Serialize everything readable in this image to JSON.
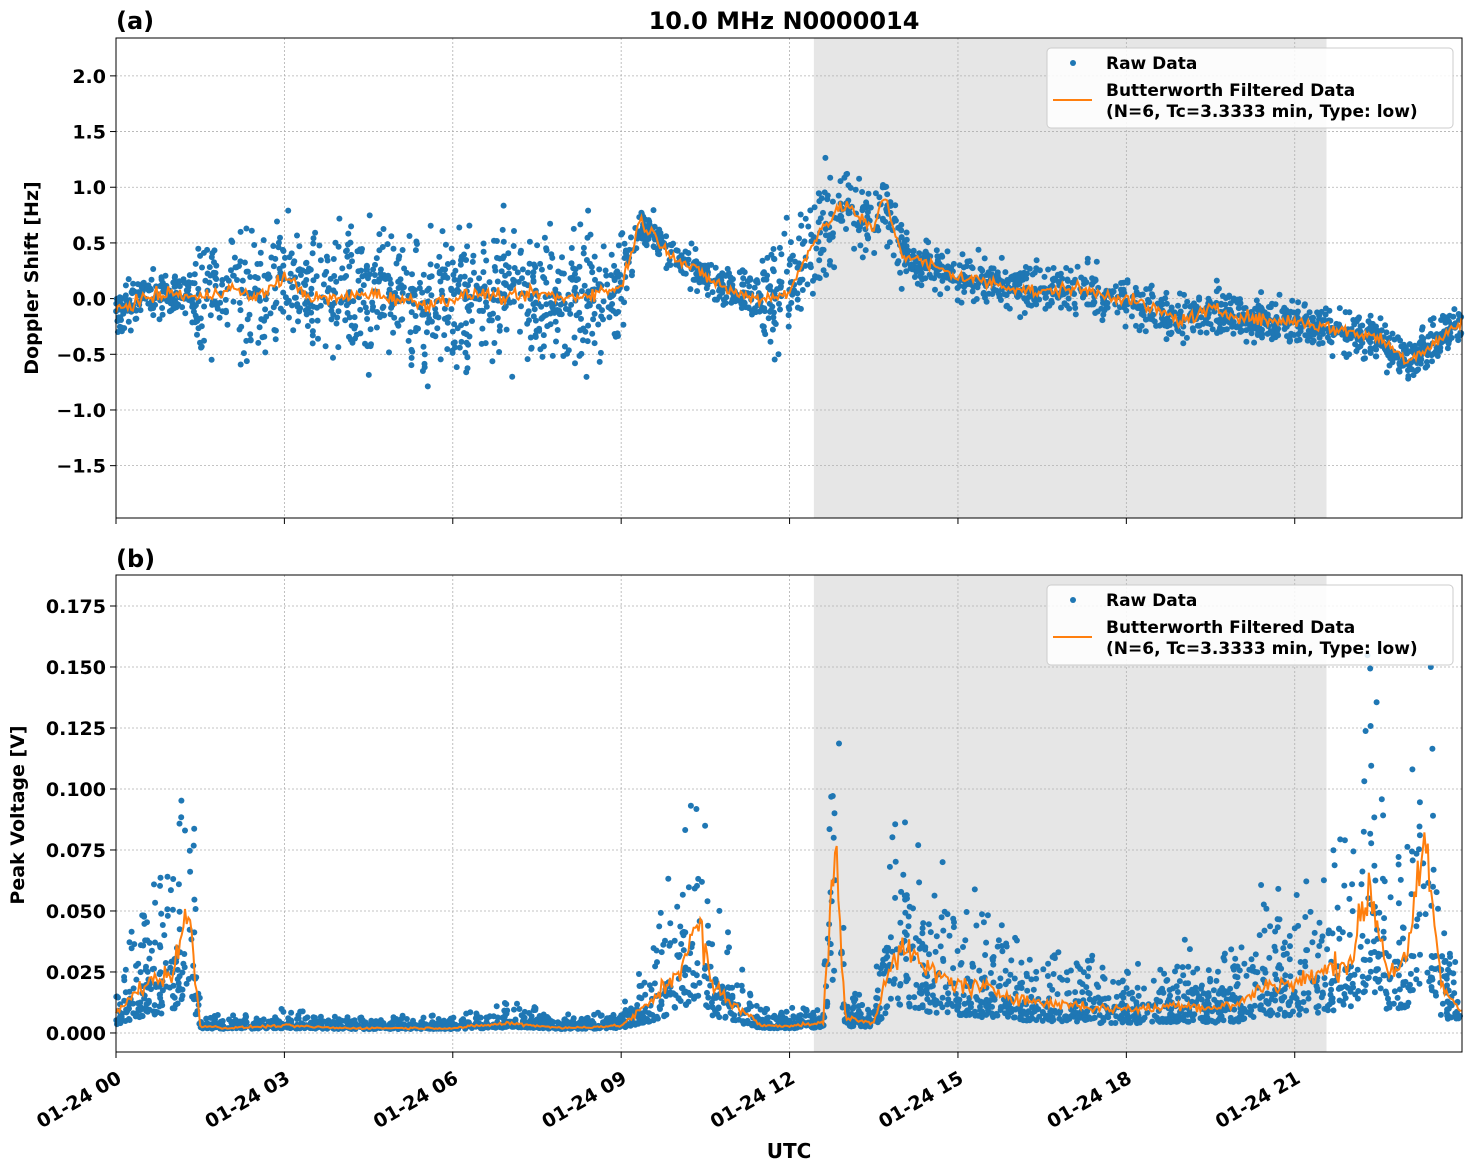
{
  "chart_data": [
    {
      "type": "scatter+line",
      "panel_label": "(a)",
      "title": "10.0 MHz N0000014",
      "xlabel": "",
      "ylabel": "Doppler Shift [Hz]",
      "ylim": [
        -1.97,
        2.34
      ],
      "yticks": [
        -1.5,
        -1.0,
        -0.5,
        0.0,
        0.5,
        1.0,
        1.5,
        2.0
      ],
      "ytick_labels": [
        "−1.5",
        "−1.0",
        "−0.5",
        "0.0",
        "0.5",
        "1.0",
        "1.5",
        "2.0"
      ],
      "xlim": [
        "01-24 00:00",
        "01-24 23:59"
      ],
      "grid": true,
      "legend_position": "top-right",
      "shaded_interval": [
        "12:26",
        "21:34"
      ],
      "series": [
        {
          "name": "Raw Data",
          "kind": "scatter",
          "color": "#1f77b4",
          "envelope_half_width": [
            [
              "00:00",
              "01:24",
              0.25
            ],
            [
              "01:24",
              "09:12",
              0.7
            ],
            [
              "09:12",
              "11:30",
              0.22
            ],
            [
              "11:30",
              "12:48",
              0.6
            ],
            [
              "12:48",
              "14:00",
              0.4
            ],
            [
              "14:00",
              "24:00",
              0.25
            ]
          ]
        },
        {
          "name": "Butterworth Filtered Data\n(N=6, Tc=3.3333 min, Type: low)",
          "kind": "line",
          "color": "#ff7f0e",
          "points": [
            [
              "00:00",
              -0.1
            ],
            [
              "00:30",
              0.0
            ],
            [
              "01:00",
              0.05
            ],
            [
              "01:30",
              0.0
            ],
            [
              "02:00",
              0.1
            ],
            [
              "02:30",
              0.0
            ],
            [
              "03:00",
              0.2
            ],
            [
              "03:30",
              0.0
            ],
            [
              "04:00",
              0.0
            ],
            [
              "04:30",
              0.05
            ],
            [
              "05:00",
              0.0
            ],
            [
              "05:30",
              -0.05
            ],
            [
              "06:00",
              0.0
            ],
            [
              "06:30",
              0.05
            ],
            [
              "07:00",
              0.0
            ],
            [
              "07:30",
              0.05
            ],
            [
              "08:00",
              0.0
            ],
            [
              "08:30",
              0.05
            ],
            [
              "09:00",
              0.1
            ],
            [
              "09:20",
              0.7
            ],
            [
              "10:00",
              0.35
            ],
            [
              "10:30",
              0.2
            ],
            [
              "11:00",
              0.05
            ],
            [
              "11:30",
              0.0
            ],
            [
              "12:00",
              0.05
            ],
            [
              "12:30",
              0.6
            ],
            [
              "13:00",
              0.85
            ],
            [
              "13:30",
              0.6
            ],
            [
              "13:40",
              0.95
            ],
            [
              "14:00",
              0.4
            ],
            [
              "14:30",
              0.3
            ],
            [
              "15:00",
              0.2
            ],
            [
              "15:30",
              0.15
            ],
            [
              "16:00",
              0.1
            ],
            [
              "16:30",
              0.05
            ],
            [
              "17:00",
              0.1
            ],
            [
              "17:30",
              0.05
            ],
            [
              "18:00",
              0.0
            ],
            [
              "18:30",
              -0.1
            ],
            [
              "19:00",
              -0.2
            ],
            [
              "19:30",
              -0.1
            ],
            [
              "20:00",
              -0.15
            ],
            [
              "20:30",
              -0.2
            ],
            [
              "21:00",
              -0.2
            ],
            [
              "21:30",
              -0.25
            ],
            [
              "22:00",
              -0.3
            ],
            [
              "22:30",
              -0.35
            ],
            [
              "23:00",
              -0.55
            ],
            [
              "23:30",
              -0.4
            ],
            [
              "24:00",
              -0.2
            ]
          ]
        }
      ]
    },
    {
      "type": "scatter+line",
      "panel_label": "(b)",
      "xlabel": "UTC",
      "ylabel": "Peak Voltage [V]",
      "ylim": [
        -0.0078,
        0.1877
      ],
      "yticks": [
        0.0,
        0.025,
        0.05,
        0.075,
        0.1,
        0.125,
        0.15,
        0.175
      ],
      "ytick_labels": [
        "0.000",
        "0.025",
        "0.050",
        "0.075",
        "0.100",
        "0.125",
        "0.150",
        "0.175"
      ],
      "xlim": [
        "01-24 00:00",
        "01-24 23:59"
      ],
      "xticks": [
        "01-24 00",
        "01-24 03",
        "01-24 06",
        "01-24 09",
        "01-24 12",
        "01-24 15",
        "01-24 18",
        "01-24 21"
      ],
      "grid": true,
      "legend_position": "top-right",
      "shaded_interval": [
        "12:26",
        "21:34"
      ],
      "series": [
        {
          "name": "Raw Data",
          "kind": "scatter",
          "color": "#1f77b4",
          "spread_factor": [
            0.3,
            2.3
          ]
        },
        {
          "name": "Butterworth Filtered Data\n(N=6, Tc=3.3333 min, Type: low)",
          "kind": "line",
          "color": "#ff7f0e",
          "points": [
            [
              "00:00",
              0.008
            ],
            [
              "00:30",
              0.02
            ],
            [
              "01:00",
              0.025
            ],
            [
              "01:18",
              0.05
            ],
            [
              "01:30",
              0.003
            ],
            [
              "02:00",
              0.002
            ],
            [
              "03:00",
              0.003
            ],
            [
              "04:00",
              0.002
            ],
            [
              "05:00",
              0.002
            ],
            [
              "06:00",
              0.002
            ],
            [
              "07:00",
              0.004
            ],
            [
              "08:00",
              0.002
            ],
            [
              "09:00",
              0.003
            ],
            [
              "09:30",
              0.012
            ],
            [
              "10:00",
              0.025
            ],
            [
              "10:24",
              0.045
            ],
            [
              "10:36",
              0.02
            ],
            [
              "11:00",
              0.012
            ],
            [
              "11:30",
              0.003
            ],
            [
              "12:00",
              0.003
            ],
            [
              "12:36",
              0.004
            ],
            [
              "12:48",
              0.08
            ],
            [
              "13:00",
              0.006
            ],
            [
              "13:30",
              0.004
            ],
            [
              "13:48",
              0.03
            ],
            [
              "14:00",
              0.035
            ],
            [
              "14:30",
              0.025
            ],
            [
              "15:00",
              0.02
            ],
            [
              "15:30",
              0.018
            ],
            [
              "16:00",
              0.015
            ],
            [
              "16:30",
              0.012
            ],
            [
              "17:00",
              0.012
            ],
            [
              "17:30",
              0.01
            ],
            [
              "18:00",
              0.01
            ],
            [
              "18:30",
              0.01
            ],
            [
              "19:00",
              0.012
            ],
            [
              "19:30",
              0.01
            ],
            [
              "20:00",
              0.012
            ],
            [
              "20:30",
              0.02
            ],
            [
              "21:00",
              0.02
            ],
            [
              "21:30",
              0.025
            ],
            [
              "22:00",
              0.03
            ],
            [
              "22:20",
              0.06
            ],
            [
              "22:40",
              0.025
            ],
            [
              "23:00",
              0.03
            ],
            [
              "23:20",
              0.08
            ],
            [
              "23:36",
              0.02
            ],
            [
              "24:00",
              0.008
            ]
          ]
        }
      ]
    }
  ]
}
